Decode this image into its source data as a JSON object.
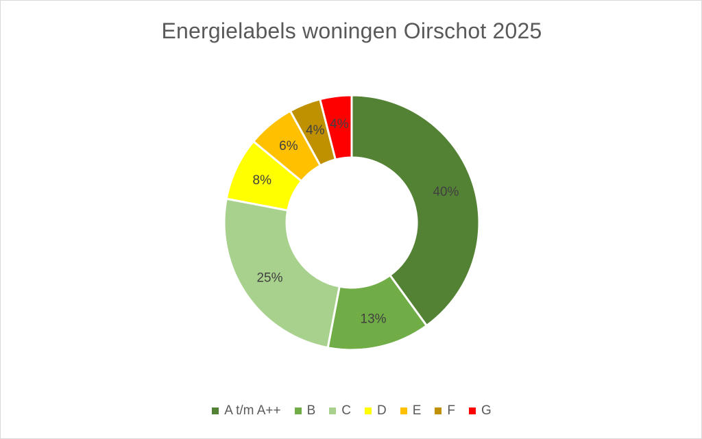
{
  "chart_data": {
    "type": "pie",
    "title": "Energielabels woningen Oirschot 2025",
    "categories": [
      "A t/m A++",
      "B",
      "C",
      "D",
      "E",
      "F",
      "G"
    ],
    "values": [
      40,
      13,
      25,
      8,
      6,
      4,
      4
    ],
    "data_labels": [
      "40%",
      "13%",
      "25%",
      "8%",
      "6%",
      "4%",
      "4%"
    ],
    "colors": [
      "#548235",
      "#70ad47",
      "#a9d18e",
      "#ffff00",
      "#ffc000",
      "#bf9000",
      "#ff0000"
    ],
    "donut": true,
    "legend_position": "bottom"
  }
}
